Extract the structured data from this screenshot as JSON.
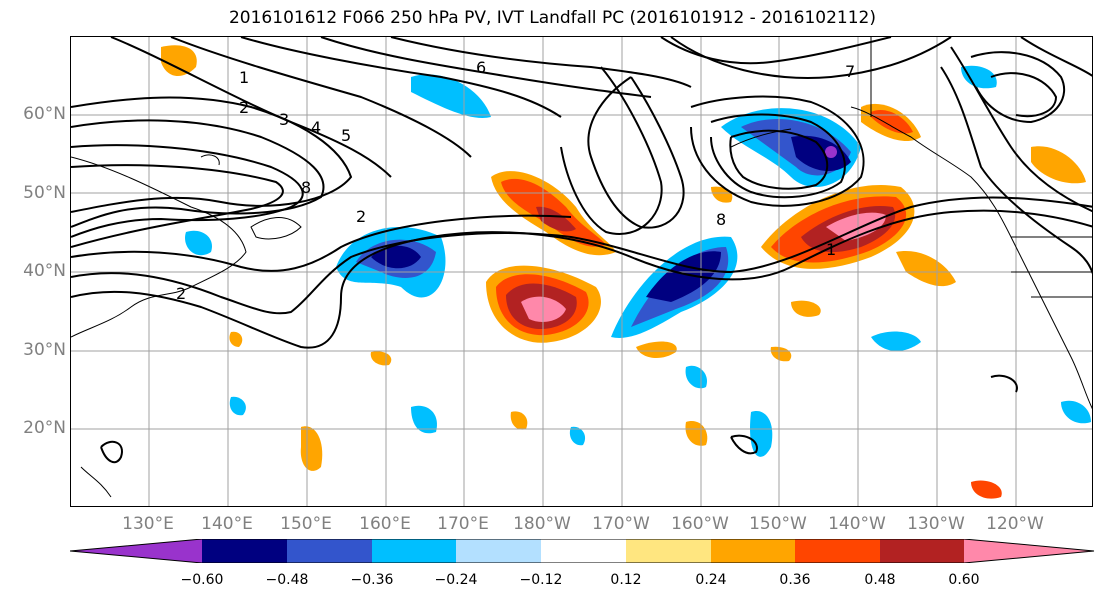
{
  "title": "2016101612 F066 250 hPa PV, IVT Landfall PC (2016101912 - 2016102112)",
  "map": {
    "lat_labels": [
      "60°N",
      "50°N",
      "40°N",
      "30°N",
      "20°N"
    ],
    "lon_labels": [
      "130°E",
      "140°E",
      "150°E",
      "160°E",
      "170°E",
      "180°W",
      "170°W",
      "160°W",
      "150°W",
      "140°W",
      "130°W",
      "120°W"
    ],
    "pv_contour_labels": [
      "1",
      "2",
      "3",
      "4",
      "5",
      "6",
      "7",
      "8",
      "2",
      "2",
      "8",
      "1"
    ]
  },
  "colorbar": {
    "colors": [
      "#9933cc",
      "#000080",
      "#3355cc",
      "#00bfff",
      "#b3e0ff",
      "#ffffff",
      "#ffe680",
      "#ffa500",
      "#ff4500",
      "#b22222",
      "#ff88aa"
    ],
    "tick_labels": [
      "−0.60",
      "−0.48",
      "−0.36",
      "−0.24",
      "−0.12",
      "0.12",
      "0.24",
      "0.36",
      "0.48",
      "0.60"
    ]
  }
}
